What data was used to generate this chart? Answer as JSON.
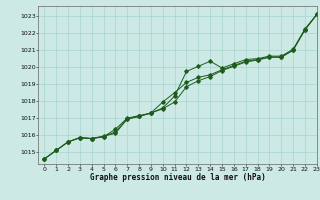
{
  "title": "Graphe pression niveau de la mer (hPa)",
  "bg_color": "#cce9e5",
  "grid_color": "#aad4cf",
  "line_color": "#1e5c1e",
  "xlim": [
    -0.5,
    23
  ],
  "ylim": [
    1014.3,
    1023.6
  ],
  "yticks": [
    1015,
    1016,
    1017,
    1018,
    1019,
    1020,
    1021,
    1022,
    1023
  ],
  "xticks": [
    0,
    1,
    2,
    3,
    4,
    5,
    6,
    7,
    8,
    9,
    10,
    11,
    12,
    13,
    14,
    15,
    16,
    17,
    18,
    19,
    20,
    21,
    22,
    23
  ],
  "line1_y": [
    1014.6,
    1015.1,
    1015.6,
    1015.85,
    1015.8,
    1015.95,
    1016.1,
    1016.95,
    1017.1,
    1017.3,
    1017.6,
    1018.3,
    1019.75,
    1020.05,
    1020.35,
    1019.95,
    1020.2,
    1020.45,
    1020.5,
    1020.65,
    1020.65,
    1021.05,
    1022.25,
    1023.1
  ],
  "line2_y": [
    1014.6,
    1015.1,
    1015.6,
    1015.85,
    1015.8,
    1015.9,
    1016.35,
    1017.0,
    1017.15,
    1017.3,
    1017.95,
    1018.5,
    1019.1,
    1019.4,
    1019.55,
    1019.85,
    1020.1,
    1020.35,
    1020.45,
    1020.6,
    1020.6,
    1021.0,
    1022.2,
    1023.1
  ],
  "line3_y": [
    1014.6,
    1015.1,
    1015.6,
    1015.85,
    1015.8,
    1015.9,
    1016.2,
    1016.95,
    1017.1,
    1017.3,
    1017.55,
    1017.95,
    1018.85,
    1019.2,
    1019.45,
    1019.8,
    1020.05,
    1020.3,
    1020.42,
    1020.58,
    1020.58,
    1021.0,
    1022.2,
    1023.1
  ]
}
